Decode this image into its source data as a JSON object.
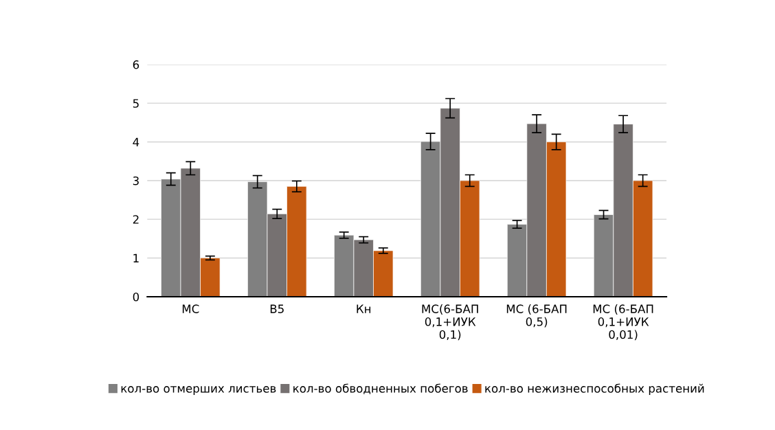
{
  "chart_data": {
    "type": "bar",
    "categories": [
      "МС",
      "B5",
      "Кн",
      "МС(6-БАП\n0,1+ИУК\n0,1)",
      "МС (6-БАП\n0,5)",
      "МС (6-БАП\n0,1+ИУК\n0,01)"
    ],
    "series": [
      {
        "name": "кол-во отмерших листьев",
        "color": "#808080",
        "values": [
          3.04,
          2.97,
          1.59,
          4.01,
          1.87,
          2.12
        ],
        "errors": [
          0.16,
          0.16,
          0.08,
          0.21,
          0.1,
          0.11
        ]
      },
      {
        "name": "кол-во обводненных побегов",
        "color": "#767171",
        "values": [
          3.32,
          2.14,
          1.47,
          4.87,
          4.47,
          4.46
        ],
        "errors": [
          0.17,
          0.12,
          0.08,
          0.25,
          0.23,
          0.22
        ]
      },
      {
        "name": "кол-во нежизнеспособных растений",
        "color": "#c55a11",
        "values": [
          1.0,
          2.85,
          1.19,
          3.0,
          4.0,
          3.0
        ],
        "errors": [
          0.05,
          0.14,
          0.07,
          0.15,
          0.2,
          0.15
        ]
      }
    ],
    "ylim": [
      0,
      6
    ],
    "yticks": [
      0,
      1,
      2,
      3,
      4,
      5,
      6
    ],
    "grid": "y",
    "legend": "bottom"
  }
}
